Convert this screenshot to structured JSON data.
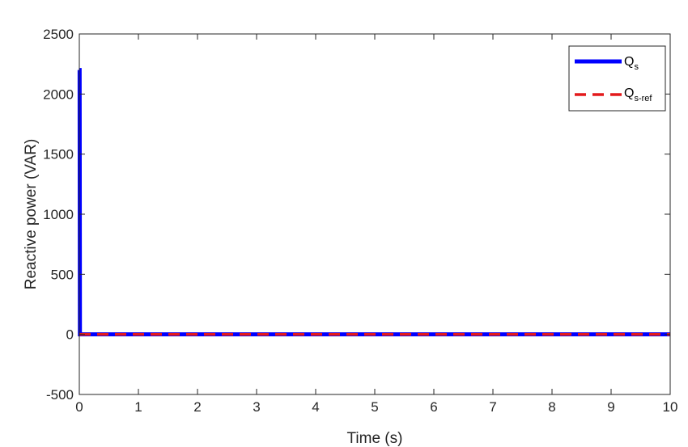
{
  "chart_data": {
    "type": "line",
    "title": "",
    "xlabel": "Time (s)",
    "ylabel": "Reactive power (VAR)",
    "xlim": [
      0,
      10
    ],
    "ylim": [
      -500,
      2500
    ],
    "xticks": [
      0,
      1,
      2,
      3,
      4,
      5,
      6,
      7,
      8,
      9,
      10
    ],
    "yticks": [
      -500,
      0,
      500,
      1000,
      1500,
      2000,
      2500
    ],
    "grid": false,
    "legend_position": "top-right",
    "legend": {
      "qs": {
        "main": "Q",
        "sub": "s"
      },
      "qsref": {
        "main": "Q",
        "sub": "s-ref"
      }
    },
    "series": [
      {
        "name": "Qs",
        "color": "#0000ff",
        "style": "solid",
        "x": [
          0,
          0.005,
          0.01,
          0.02,
          0.05,
          1,
          2,
          3,
          4,
          5,
          6,
          7,
          8,
          9,
          10
        ],
        "y": [
          2200,
          2200,
          0,
          0,
          0,
          0,
          0,
          0,
          0,
          0,
          0,
          0,
          0,
          0,
          0
        ]
      },
      {
        "name": "Qs-ref",
        "color": "#e31a1c",
        "style": "dashed",
        "x": [
          0,
          10
        ],
        "y": [
          0,
          0
        ]
      }
    ]
  }
}
